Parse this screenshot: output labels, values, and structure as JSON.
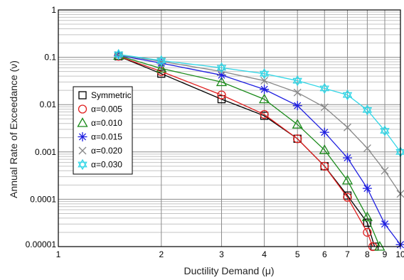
{
  "chart_data": {
    "type": "line",
    "xlabel": "Ductility Demand (μ)",
    "ylabel": "Annual Rate of Exceedance (ν)",
    "x_scale": "log",
    "y_scale": "log",
    "xlim": [
      1,
      10
    ],
    "ylim": [
      1e-05,
      1
    ],
    "x_ticks": [
      1,
      2,
      3,
      4,
      5,
      6,
      7,
      8,
      9,
      10
    ],
    "x_tick_labels": [
      "1",
      "2",
      "3",
      "4",
      "5",
      "6",
      "7",
      "8",
      "9",
      "10"
    ],
    "y_ticks": [
      1e-05,
      0.0001,
      0.001,
      0.01,
      0.1,
      1
    ],
    "y_tick_labels": [
      "0.00001",
      "0.0001",
      "0.001",
      "0.01",
      "0.1",
      "1"
    ],
    "grid": true,
    "legend_position": "left-middle",
    "series": [
      {
        "name": "Symmetric",
        "color": "#000000",
        "marker": "square",
        "x": [
          1.5,
          2,
          3,
          4,
          5,
          6,
          7,
          8,
          8.4
        ],
        "y": [
          0.105,
          0.045,
          0.013,
          0.0058,
          0.0019,
          0.0005,
          0.00012,
          3.2e-05,
          1e-05
        ]
      },
      {
        "name": "α=0.005",
        "color": "#e02020",
        "marker": "circle",
        "x": [
          1.5,
          2,
          3,
          4,
          5,
          6,
          7,
          8,
          8.3
        ],
        "y": [
          0.105,
          0.05,
          0.016,
          0.0062,
          0.0019,
          0.0005,
          0.00011,
          2e-05,
          1e-05
        ]
      },
      {
        "name": "α=0.010",
        "color": "#1a8a1a",
        "marker": "triangle",
        "x": [
          1.5,
          2,
          3,
          4,
          5,
          6,
          7,
          8,
          8.7
        ],
        "y": [
          0.108,
          0.058,
          0.03,
          0.013,
          0.0038,
          0.0011,
          0.00025,
          4.2e-05,
          1e-05
        ]
      },
      {
        "name": "α=0.015",
        "color": "#1f1fe0",
        "marker": "star",
        "x": [
          1.5,
          2,
          3,
          4,
          5,
          6,
          7,
          8,
          9,
          10
        ],
        "y": [
          0.11,
          0.075,
          0.042,
          0.021,
          0.0095,
          0.0026,
          0.00075,
          0.00017,
          3e-05,
          1.1e-05
        ]
      },
      {
        "name": "α=0.020",
        "color": "#888888",
        "marker": "x",
        "x": [
          1.5,
          2,
          3,
          4,
          5,
          6,
          7,
          8,
          9,
          10
        ],
        "y": [
          0.112,
          0.082,
          0.05,
          0.032,
          0.018,
          0.0088,
          0.0033,
          0.0012,
          0.0004,
          0.00013
        ]
      },
      {
        "name": "α=0.030",
        "color": "#33d6e6",
        "marker": "star-of-david",
        "x": [
          1.5,
          2,
          3,
          4,
          5,
          6,
          7,
          8,
          9,
          10
        ],
        "y": [
          0.115,
          0.085,
          0.06,
          0.045,
          0.032,
          0.022,
          0.016,
          0.0077,
          0.0028,
          0.001
        ]
      }
    ]
  }
}
